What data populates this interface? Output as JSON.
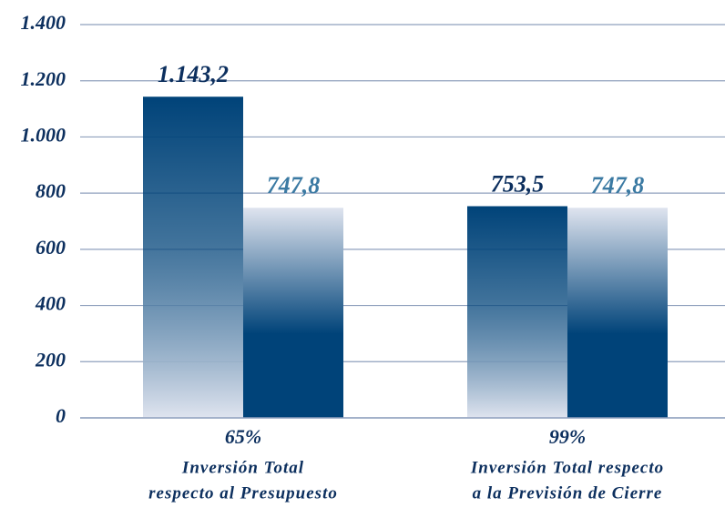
{
  "chart_data": {
    "type": "bar",
    "categories": [
      [
        "Inversión Total",
        "respecto al Presupuesto"
      ],
      [
        "Inversión Total respecto",
        "a la Previsión de Cierre"
      ]
    ],
    "annotations": [
      "65%",
      "99%"
    ],
    "series": [
      {
        "color": "#004379",
        "values": [
          1143.2,
          753.5
        ],
        "value_labels": [
          "1.143,2",
          "753,5"
        ]
      },
      {
        "color": "#004379",
        "values": [
          747.8,
          747.8
        ],
        "value_labels": [
          "747,8",
          "747,8"
        ]
      }
    ],
    "ylim": [
      0,
      1400
    ],
    "yticks": [
      0,
      200,
      400,
      600,
      800,
      {
        "value": 1000,
        "label": "1.000"
      },
      {
        "value": 1200,
        "label": "1.200"
      },
      {
        "value": 1400,
        "label": "1.400"
      }
    ],
    "grid": true
  }
}
